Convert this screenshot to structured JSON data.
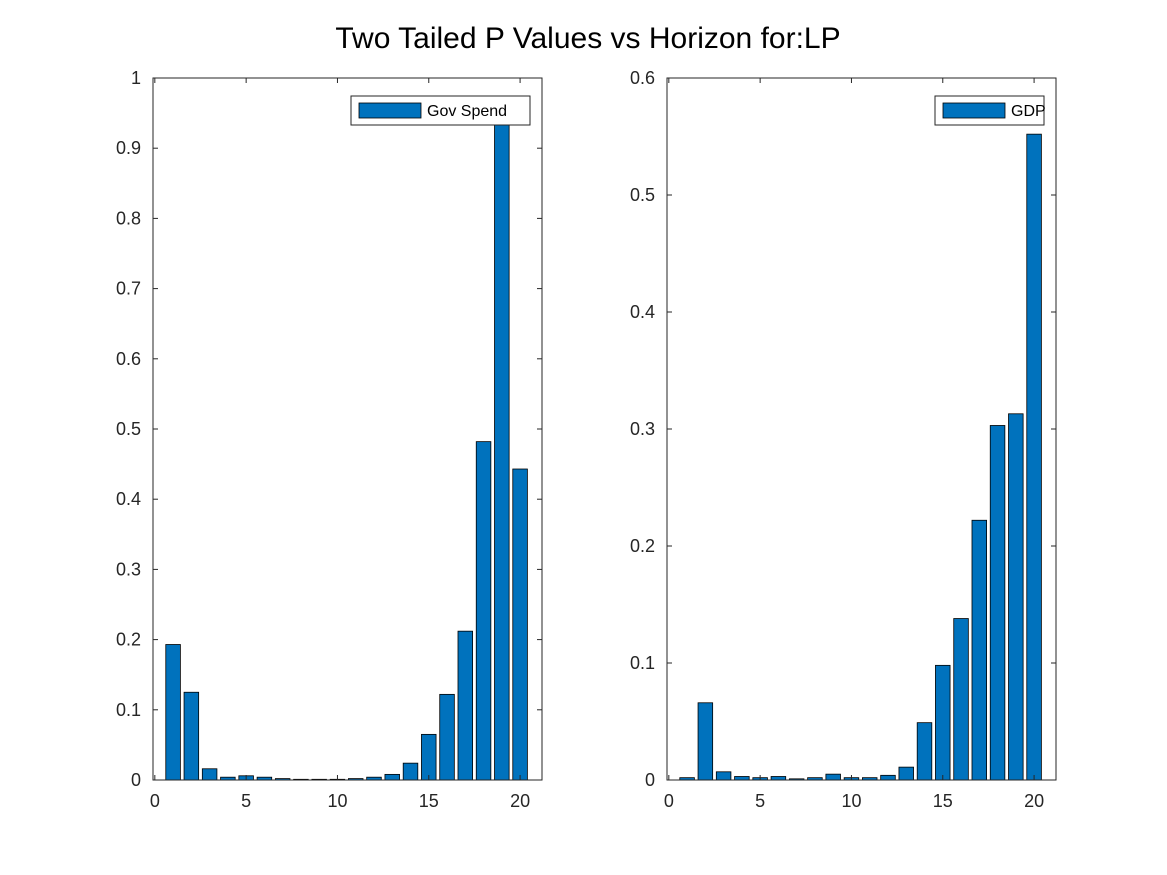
{
  "figure": {
    "title": "Two Tailed P Values vs Horizon for:LP"
  },
  "colors": {
    "bar_fill": "#0072BD",
    "bar_edge": "#000000",
    "axis": "#262626",
    "background": "#ffffff"
  },
  "chart_data": [
    {
      "type": "bar",
      "title": "",
      "xlabel": "",
      "ylabel": "",
      "xlim": [
        -0.1,
        21.2
      ],
      "ylim": [
        0,
        1
      ],
      "xticks": [
        0,
        5,
        10,
        15,
        20
      ],
      "yticks": [
        0,
        0.1,
        0.2,
        0.3,
        0.4,
        0.5,
        0.6,
        0.7,
        0.8,
        0.9,
        1
      ],
      "ytick_labels": [
        "0",
        "0.1",
        "0.2",
        "0.3",
        "0.4",
        "0.5",
        "0.6",
        "0.7",
        "0.8",
        "0.9",
        "1"
      ],
      "legend_position": "top-right",
      "grid": false,
      "series": [
        {
          "name": "Gov Spend",
          "x": [
            1,
            2,
            3,
            4,
            5,
            6,
            7,
            8,
            9,
            10,
            11,
            12,
            13,
            14,
            15,
            16,
            17,
            18,
            19,
            20
          ],
          "values": [
            0.193,
            0.125,
            0.016,
            0.004,
            0.006,
            0.004,
            0.002,
            0.001,
            0.001,
            0.001,
            0.002,
            0.004,
            0.008,
            0.024,
            0.065,
            0.122,
            0.212,
            0.482,
            0.95,
            0.443
          ]
        }
      ]
    },
    {
      "type": "bar",
      "title": "",
      "xlabel": "",
      "ylabel": "",
      "xlim": [
        -0.1,
        21.2
      ],
      "ylim": [
        0,
        0.6
      ],
      "xticks": [
        0,
        5,
        10,
        15,
        20
      ],
      "yticks": [
        0,
        0.1,
        0.2,
        0.3,
        0.4,
        0.5,
        0.6
      ],
      "ytick_labels": [
        "0",
        "0.1",
        "0.2",
        "0.3",
        "0.4",
        "0.5",
        "0.6"
      ],
      "legend_position": "top-right",
      "grid": false,
      "series": [
        {
          "name": "GDP",
          "x": [
            1,
            2,
            3,
            4,
            5,
            6,
            7,
            8,
            9,
            10,
            11,
            12,
            13,
            14,
            15,
            16,
            17,
            18,
            19,
            20
          ],
          "values": [
            0.002,
            0.066,
            0.007,
            0.003,
            0.002,
            0.003,
            0.001,
            0.002,
            0.005,
            0.002,
            0.002,
            0.004,
            0.011,
            0.049,
            0.098,
            0.138,
            0.222,
            0.303,
            0.313,
            0.552
          ]
        }
      ]
    }
  ]
}
